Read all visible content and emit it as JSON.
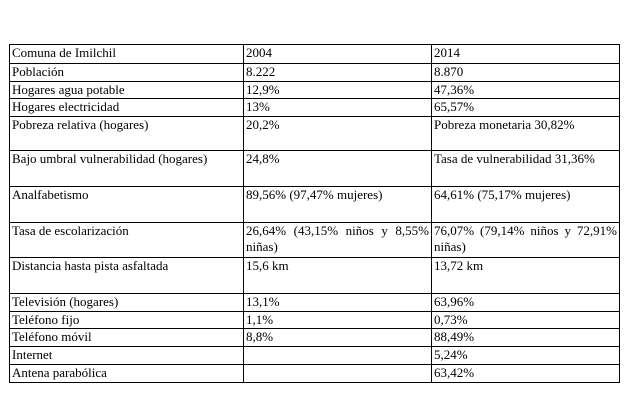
{
  "table": {
    "rows": [
      [
        "Comuna de Imilchil",
        "2004",
        "2014"
      ],
      [
        "Población",
        "8.222",
        "8.870"
      ],
      [
        "Hogares agua potable",
        "12,9%",
        "47,36%"
      ],
      [
        "Hogares electricidad",
        "13%",
        "65,57%"
      ],
      [
        "Pobreza relativa (hogares)",
        "20,2%",
        "Pobreza monetaria 30,82%"
      ],
      [
        "Bajo umbral vulnerabilidad (hogares)",
        "24,8%",
        "Tasa de vulnerabilidad 31,36%"
      ],
      [
        "Analfabetismo",
        "89,56% (97,47% mujeres)",
        "64,61% (75,17% mujeres)"
      ],
      [
        "Tasa de escolarización",
        "26,64% (43,15% niños y 8,55% niñas)",
        "76,07% (79,14% niños y 72,91% niñas)"
      ],
      [
        "Distancia hasta pista asfaltada",
        "15,6 km",
        "13,72 km"
      ],
      [
        "Televisión (hogares)",
        "13,1%",
        "63,96%"
      ],
      [
        "Teléfono fijo",
        "1,1%",
        "0,73%"
      ],
      [
        "Teléfono móvil",
        "8,8%",
        "88,49%"
      ],
      [
        "Internet",
        null,
        "5,24%"
      ],
      [
        "Antena parabólica",
        null,
        "63,42%"
      ]
    ]
  }
}
